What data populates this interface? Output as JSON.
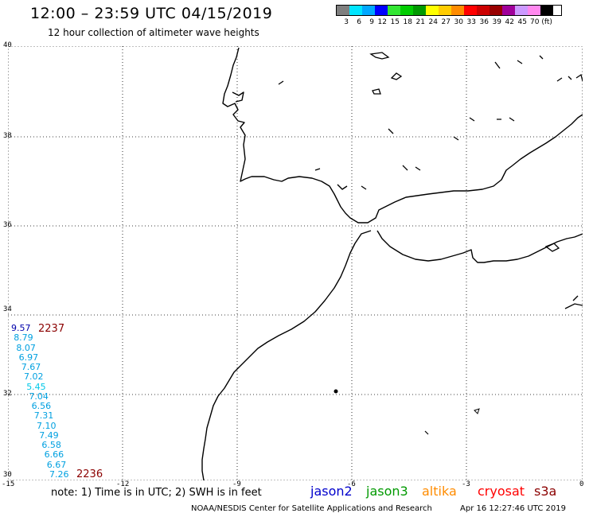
{
  "header": {
    "title": "12:00 – 23:59 UTC 04/15/2019",
    "subtitle": "12 hour collection of altimeter wave heights"
  },
  "color_scale": {
    "colors": [
      "#7f7f7f",
      "#00e5ff",
      "#00a8ff",
      "#0000ff",
      "#33e633",
      "#00cc00",
      "#009900",
      "#ffff00",
      "#ffcc00",
      "#ff8c00",
      "#ff0000",
      "#cc0000",
      "#990000",
      "#a0009a",
      "#cc99ff",
      "#ff88ee",
      "#000000"
    ],
    "labels": [
      "3",
      "6",
      "9",
      "12",
      "15",
      "18",
      "21",
      "24",
      "27",
      "30",
      "33",
      "36",
      "39",
      "42",
      "45",
      "70 (ft)"
    ]
  },
  "axes": {
    "y_labels": [
      "40",
      "38",
      "36",
      "34",
      "32",
      "30"
    ],
    "x_labels": [
      "-15",
      "-12",
      "-9",
      "-6",
      "-3",
      "0"
    ]
  },
  "track": {
    "start_time": "2237",
    "end_time": "2236",
    "values": [
      "9.57",
      "8.79",
      "8.07",
      "6.97",
      "7.67",
      "7.02",
      "5.45",
      "7.04",
      "6.56",
      "7.31",
      "7.10",
      "7.49",
      "6.58",
      "6.66",
      "6.67",
      "7.26"
    ],
    "colors": [
      "#0000aa",
      "#00a0e0",
      "#00a0e0",
      "#00a0e0",
      "#00a0e0",
      "#00a0e0",
      "#00c8e8",
      "#00a0e0",
      "#00a0e0",
      "#00a0e0",
      "#00a0e0",
      "#00a0e0",
      "#00a0e0",
      "#00a0e0",
      "#00a0e0",
      "#00a0e0"
    ]
  },
  "footer": {
    "note": "note: 1) Time is in UTC; 2) SWH is in feet",
    "legend": [
      {
        "label": "jason2",
        "color": "#0000cc"
      },
      {
        "label": "jason3",
        "color": "#009900"
      },
      {
        "label": "altika",
        "color": "#ff8c00"
      },
      {
        "label": "cryosat",
        "color": "#ff0000"
      },
      {
        "label": "s3a",
        "color": "#8b0000"
      }
    ],
    "credit": "NOAA/NESDIS Center for Satellite Applications and Research",
    "timestamp": "Apr 16 12:27:46 UTC 2019"
  }
}
